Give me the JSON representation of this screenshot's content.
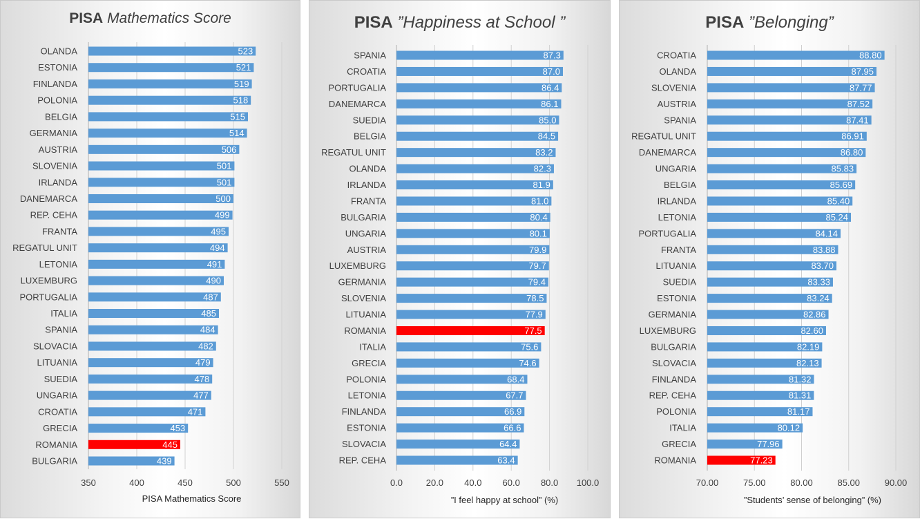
{
  "charts": [
    {
      "title_bold": "PISA",
      "title_italic": "Mathematics Score",
      "xlabel": "PISA Mathematics Score",
      "decimals": 0,
      "highlight": "ROMANIA"
    },
    {
      "title_bold": "PISA",
      "title_italic": "”Happiness at School ”",
      "xlabel": "”I feel happy at school” (%)",
      "decimals": 1,
      "highlight": "ROMANIA"
    },
    {
      "title_bold": "PISA",
      "title_italic": "”Belonging”",
      "xlabel": "”Students’ sense of belonging” (%)",
      "decimals": 2,
      "highlight": "ROMANIA"
    }
  ],
  "colors": {
    "bar": "#5b9bd5",
    "highlight": "#ff0000",
    "grid": "#d0d0d0",
    "label_text": "#ffffff",
    "category_text": "#404040"
  },
  "chart_data": [
    {
      "type": "bar",
      "orientation": "horizontal",
      "title": "PISA Mathematics Score",
      "xlabel": "PISA Mathematics Score",
      "xlim": [
        350,
        550
      ],
      "xticks": [
        350,
        400,
        450,
        500,
        550
      ],
      "xtick_labels": [
        "350",
        "400",
        "450",
        "500",
        "550"
      ],
      "grid": true,
      "categories": [
        "OLANDA",
        "ESTONIA",
        "FINLANDA",
        "POLONIA",
        "BELGIA",
        "GERMANIA",
        "AUSTRIA",
        "SLOVENIA",
        "IRLANDA",
        "DANEMARCA",
        "REP. CEHA",
        "FRANTA",
        "REGATUL UNIT",
        "LETONIA",
        "LUXEMBURG",
        "PORTUGALIA",
        "ITALIA",
        "SPANIA",
        "SLOVACIA",
        "LITUANIA",
        "SUEDIA",
        "UNGARIA",
        "CROATIA",
        "GRECIA",
        "ROMANIA",
        "BULGARIA"
      ],
      "values": [
        523,
        521,
        519,
        518,
        515,
        514,
        506,
        501,
        501,
        500,
        499,
        495,
        494,
        491,
        490,
        487,
        485,
        484,
        482,
        479,
        478,
        477,
        471,
        453,
        445,
        439
      ],
      "data_labels": [
        "523",
        "521",
        "519",
        "518",
        "515",
        "514",
        "506",
        "501",
        "501",
        "500",
        "499",
        "495",
        "494",
        "491",
        "490",
        "487",
        "485",
        "484",
        "482",
        "479",
        "478",
        "477",
        "471",
        "453",
        "445",
        "439"
      ]
    },
    {
      "type": "bar",
      "orientation": "horizontal",
      "title": "PISA ”Happiness at School ”",
      "xlabel": "”I feel happy at school” (%)",
      "xlim": [
        0,
        100
      ],
      "xticks": [
        0,
        20,
        40,
        60,
        80,
        100
      ],
      "xtick_labels": [
        "0.0",
        "20.0",
        "40.0",
        "60.0",
        "80.0",
        "100.0"
      ],
      "grid": true,
      "categories": [
        "SPANIA",
        "CROATIA",
        "PORTUGALIA",
        "DANEMARCA",
        "SUEDIA",
        "BELGIA",
        "REGATUL UNIT",
        "OLANDA",
        "IRLANDA",
        "FRANTA",
        "BULGARIA",
        "UNGARIA",
        "AUSTRIA",
        "LUXEMBURG",
        "GERMANIA",
        "SLOVENIA",
        "LITUANIA",
        "ROMANIA",
        "ITALIA",
        "GRECIA",
        "POLONIA",
        "LETONIA",
        "FINLANDA",
        "ESTONIA",
        "SLOVACIA",
        "REP. CEHA"
      ],
      "values": [
        87.3,
        87.0,
        86.4,
        86.1,
        85.0,
        84.5,
        83.2,
        82.3,
        81.9,
        81.0,
        80.4,
        80.1,
        79.9,
        79.7,
        79.4,
        78.5,
        77.9,
        77.5,
        75.6,
        74.6,
        68.4,
        67.7,
        66.9,
        66.6,
        64.4,
        63.4
      ],
      "data_labels": [
        "87.3",
        "87.0",
        "86.4",
        "86.1",
        "85.0",
        "84.5",
        "83.2",
        "82.3",
        "81.9",
        "81.0",
        "80.4",
        "80.1",
        "79.9",
        "79.7",
        "79.4",
        "78.5",
        "77.9",
        "77.5",
        "75.6",
        "74.6",
        "68.4",
        "67.7",
        "66.9",
        "66.6",
        "64.4",
        "63.4"
      ]
    },
    {
      "type": "bar",
      "orientation": "horizontal",
      "title": "PISA ”Belonging”",
      "xlabel": "”Students’ sense of belonging” (%)",
      "xlim": [
        70,
        90
      ],
      "xticks": [
        70,
        75,
        80,
        85,
        90
      ],
      "xtick_labels": [
        "70.00",
        "75.00",
        "80.00",
        "85.00",
        "90.00"
      ],
      "grid": true,
      "categories": [
        "CROATIA",
        "OLANDA",
        "SLOVENIA",
        "AUSTRIA",
        "SPANIA",
        "REGATUL UNIT",
        "DANEMARCA",
        "UNGARIA",
        "BELGIA",
        "IRLANDA",
        "LETONIA",
        "PORTUGALIA",
        "FRANTA",
        "LITUANIA",
        "SUEDIA",
        "ESTONIA",
        "GERMANIA",
        "LUXEMBURG",
        "BULGARIA",
        "SLOVACIA",
        "FINLANDA",
        "REP. CEHA",
        "POLONIA",
        "ITALIA",
        "GRECIA",
        "ROMANIA"
      ],
      "values": [
        88.8,
        87.95,
        87.77,
        87.52,
        87.41,
        86.91,
        86.8,
        85.83,
        85.69,
        85.4,
        85.24,
        84.14,
        83.88,
        83.7,
        83.33,
        83.24,
        82.86,
        82.6,
        82.19,
        82.13,
        81.32,
        81.31,
        81.17,
        80.12,
        77.96,
        77.23
      ],
      "data_labels": [
        "88.80",
        "87.95",
        "87.77",
        "87.52",
        "87.41",
        "86.91",
        "86.80",
        "85.83",
        "85.69",
        "85.40",
        "85.24",
        "84.14",
        "83.88",
        "83.70",
        "83.33",
        "83.24",
        "82.86",
        "82.60",
        "82.19",
        "82.13",
        "81.32",
        "81.31",
        "81.17",
        "80.12",
        "77.96",
        "77.23"
      ]
    }
  ]
}
